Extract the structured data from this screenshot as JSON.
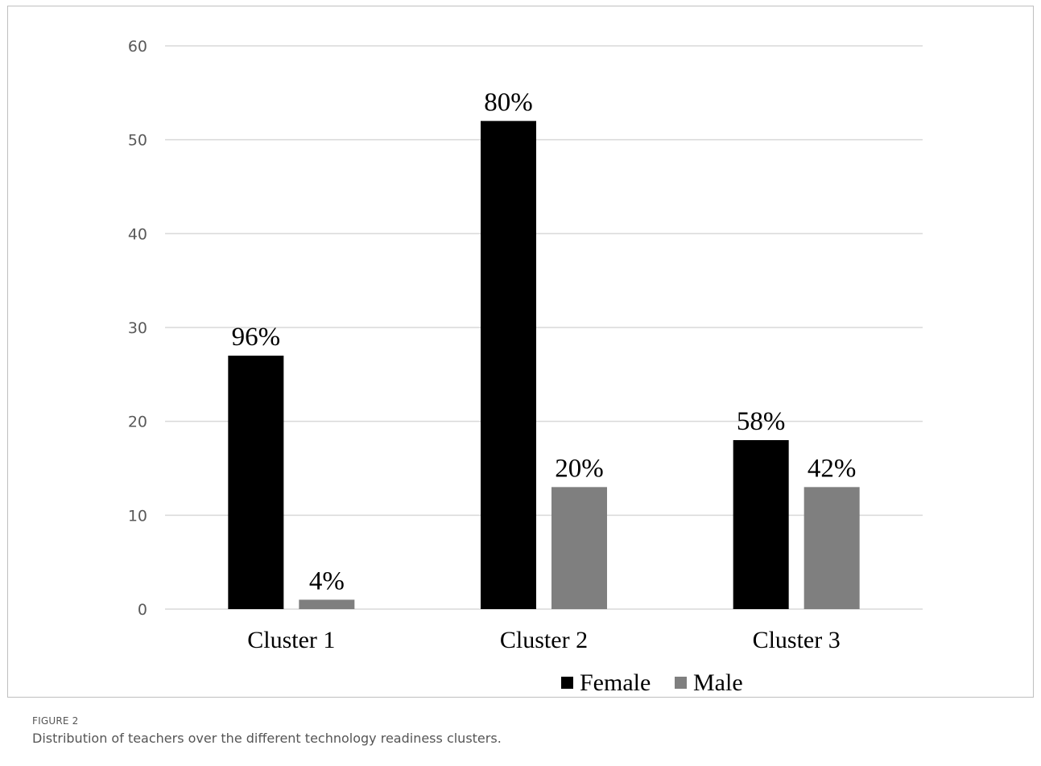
{
  "figure": {
    "label": "FIGURE 2",
    "caption": "Distribution of teachers over the different technology readiness clusters."
  },
  "colors": {
    "female": "#000000",
    "male": "#7f7f7f",
    "grid": "#d9d9d9"
  },
  "chart_data": {
    "type": "bar",
    "title": "",
    "xlabel": "",
    "ylabel": "",
    "categories": [
      "Cluster 1",
      "Cluster 2",
      "Cluster 3"
    ],
    "series": [
      {
        "name": "Female",
        "values": [
          27,
          52,
          18
        ],
        "labels": [
          "96%",
          "80%",
          "58%"
        ]
      },
      {
        "name": "Male",
        "values": [
          1,
          13,
          13
        ],
        "labels": [
          "4%",
          "20%",
          "42%"
        ]
      }
    ],
    "ylim": [
      0,
      60
    ],
    "yticks": [
      0,
      10,
      20,
      30,
      40,
      50,
      60
    ],
    "grid": true,
    "legend_position": "bottom-right"
  }
}
